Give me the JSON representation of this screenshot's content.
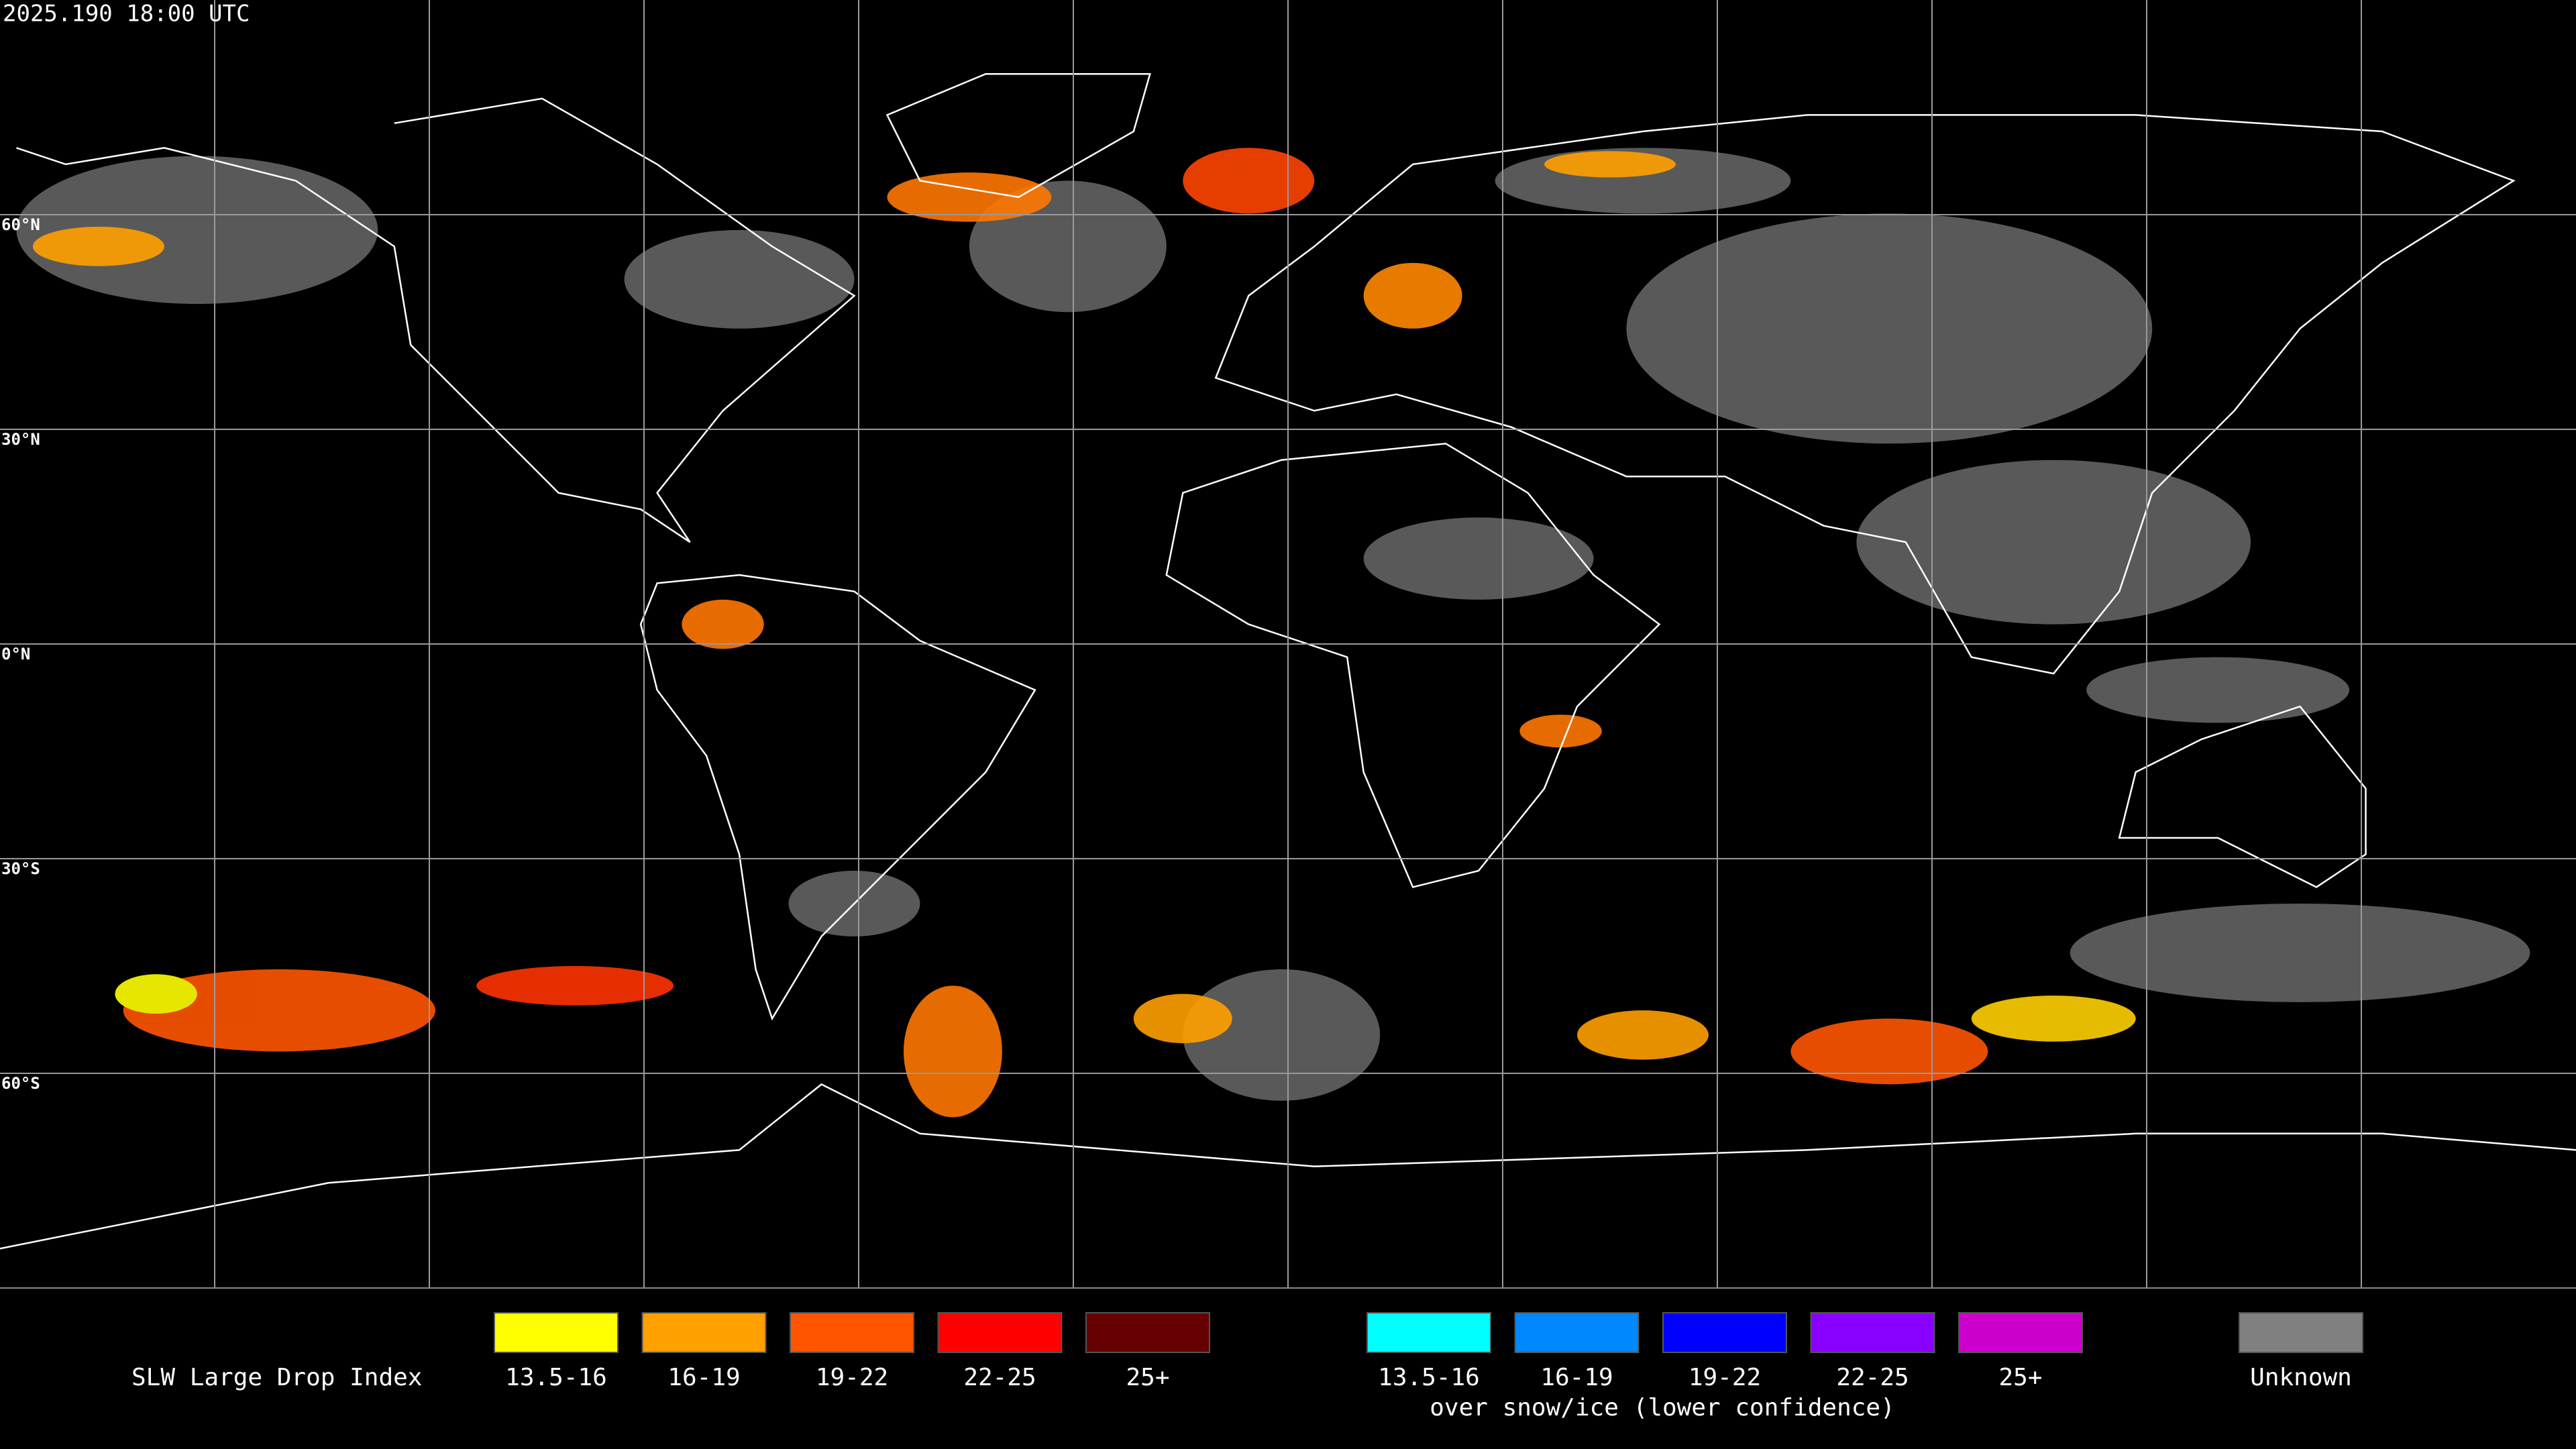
{
  "header": {
    "timestamp": "2025.190 18:00 UTC"
  },
  "map": {
    "latitude_labels": [
      "60°N",
      "30°N",
      "0°N",
      "30°S",
      "60°S"
    ]
  },
  "legend": {
    "title": "SLW Large Drop Index",
    "items": [
      {
        "label": "13.5-16",
        "color": "#ffff00"
      },
      {
        "label": "16-19",
        "color": "#ffa000"
      },
      {
        "label": "19-22",
        "color": "#ff5500"
      },
      {
        "label": "22-25",
        "color": "#ff0000"
      },
      {
        "label": "25+",
        "color": "#660000"
      }
    ],
    "snow_ice_items": [
      {
        "label": "13.5-16",
        "color": "#00ffff"
      },
      {
        "label": "16-19",
        "color": "#0088ff"
      },
      {
        "label": "19-22",
        "color": "#0000ff"
      },
      {
        "label": "22-25",
        "color": "#8800ff"
      },
      {
        "label": "25+",
        "color": "#cc00cc"
      }
    ],
    "snow_ice_caption": "over snow/ice (lower confidence)",
    "unknown": {
      "label": "Unknown",
      "color": "#808080"
    }
  }
}
